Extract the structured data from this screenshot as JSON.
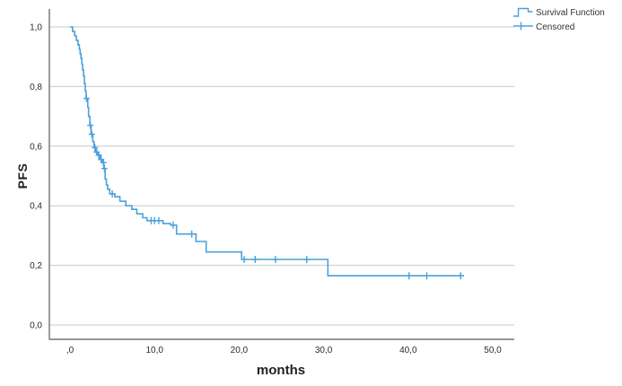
{
  "window": {
    "background": "#ffffff"
  },
  "colors": {
    "curve_blue": "#4BA1DB",
    "gridline": "#C9C9C9",
    "axis_line": "#595959",
    "tick_text": "#2B2B2B",
    "legend_text": "#333333"
  },
  "legend": {
    "items": [
      {
        "label": "Survival Function",
        "icon": "step-line-icon"
      },
      {
        "label": "Censored",
        "icon": "plus-cross-icon"
      }
    ]
  },
  "chart_data": {
    "type": "line",
    "subtype": "kaplan-meier-step",
    "title": "",
    "xlabel": "months",
    "ylabel": "PFS",
    "x_ticks": [
      0,
      10,
      20,
      30,
      40,
      50
    ],
    "x_tick_labels": [
      ",0",
      "10,0",
      "20,0",
      "30,0",
      "40,0",
      "50,0"
    ],
    "y_ticks": [
      0,
      0.2,
      0.4,
      0.6,
      0.8,
      1.0
    ],
    "y_tick_labels": [
      "0,0",
      "0,2",
      "0,4",
      "0,6",
      "0,8",
      "1,0"
    ],
    "xlim": [
      -2.5,
      52.5
    ],
    "ylim": [
      -0.05,
      1.05
    ],
    "grid": "horizontal-only",
    "legend_position": "top-right",
    "series": [
      {
        "name": "Survival Function",
        "style": "step-after",
        "end_time": 46.6,
        "points": [
          [
            0,
            1.0
          ],
          [
            0.3,
            0.985
          ],
          [
            0.55,
            0.97
          ],
          [
            0.75,
            0.955
          ],
          [
            0.95,
            0.94
          ],
          [
            1.1,
            0.925
          ],
          [
            1.2,
            0.91
          ],
          [
            1.3,
            0.895
          ],
          [
            1.4,
            0.875
          ],
          [
            1.5,
            0.855
          ],
          [
            1.6,
            0.835
          ],
          [
            1.7,
            0.81
          ],
          [
            1.8,
            0.785
          ],
          [
            1.9,
            0.76
          ],
          [
            2.1,
            0.73
          ],
          [
            2.2,
            0.7
          ],
          [
            2.35,
            0.67
          ],
          [
            2.5,
            0.64
          ],
          [
            2.7,
            0.615
          ],
          [
            2.85,
            0.595
          ],
          [
            3.05,
            0.58
          ],
          [
            3.3,
            0.57
          ],
          [
            3.55,
            0.555
          ],
          [
            3.85,
            0.545
          ],
          [
            4.0,
            0.525
          ],
          [
            4.15,
            0.49
          ],
          [
            4.3,
            0.47
          ],
          [
            4.45,
            0.455
          ],
          [
            4.7,
            0.44
          ],
          [
            5.3,
            0.43
          ],
          [
            5.9,
            0.415
          ],
          [
            6.6,
            0.4
          ],
          [
            7.3,
            0.388
          ],
          [
            7.9,
            0.373
          ],
          [
            8.6,
            0.36
          ],
          [
            9.1,
            0.35
          ],
          [
            11.0,
            0.34
          ],
          [
            11.9,
            0.335
          ],
          [
            12.6,
            0.305
          ],
          [
            14.9,
            0.28
          ],
          [
            16.1,
            0.245
          ],
          [
            20.3,
            0.22
          ],
          [
            30.5,
            0.165
          ]
        ]
      },
      {
        "name": "Censored",
        "style": "plus-markers",
        "points": [
          [
            1.95,
            0.76
          ],
          [
            2.4,
            0.67
          ],
          [
            2.58,
            0.64
          ],
          [
            2.95,
            0.595
          ],
          [
            3.15,
            0.58
          ],
          [
            3.4,
            0.57
          ],
          [
            3.68,
            0.555
          ],
          [
            3.95,
            0.545
          ],
          [
            4.07,
            0.525
          ],
          [
            5.0,
            0.44
          ],
          [
            9.6,
            0.35
          ],
          [
            10.0,
            0.35
          ],
          [
            10.5,
            0.35
          ],
          [
            12.2,
            0.335
          ],
          [
            14.4,
            0.305
          ],
          [
            20.6,
            0.22
          ],
          [
            21.9,
            0.22
          ],
          [
            24.3,
            0.22
          ],
          [
            28.0,
            0.22
          ],
          [
            40.1,
            0.165
          ],
          [
            42.2,
            0.165
          ],
          [
            46.2,
            0.165
          ]
        ]
      }
    ]
  }
}
